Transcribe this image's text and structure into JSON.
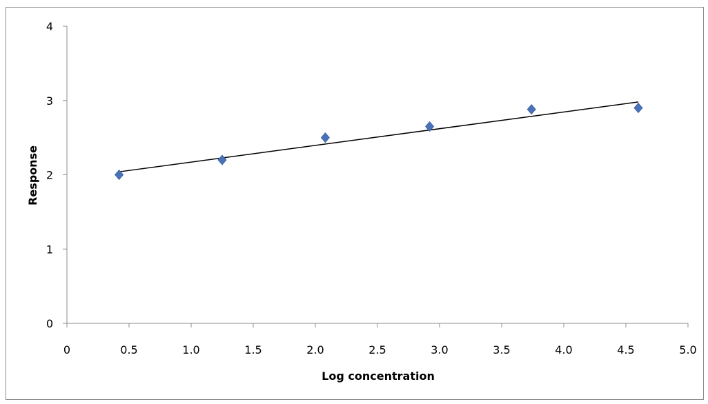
{
  "chart_data": {
    "type": "scatter",
    "title": "",
    "xlabel": "Log concentration",
    "ylabel": "Response",
    "xlim": [
      0,
      5
    ],
    "ylim": [
      0,
      4
    ],
    "x_ticks": [
      {
        "value": 0,
        "label": "0"
      },
      {
        "value": 0.5,
        "label": "0.5"
      },
      {
        "value": 1.0,
        "label": "1.0"
      },
      {
        "value": 1.5,
        "label": "1.5"
      },
      {
        "value": 2.0,
        "label": "2.0"
      },
      {
        "value": 2.5,
        "label": "2.5"
      },
      {
        "value": 3.0,
        "label": "3.0"
      },
      {
        "value": 3.5,
        "label": "3.5"
      },
      {
        "value": 4.0,
        "label": "4.0"
      },
      {
        "value": 4.5,
        "label": "4.5"
      },
      {
        "value": 5.0,
        "label": "5.0"
      }
    ],
    "y_ticks": [
      {
        "value": 0,
        "label": "0"
      },
      {
        "value": 1,
        "label": "1"
      },
      {
        "value": 2,
        "label": "2"
      },
      {
        "value": 3,
        "label": "3"
      },
      {
        "value": 4,
        "label": "4"
      }
    ],
    "grid": false,
    "legend": "none",
    "series": [
      {
        "marker": "diamond",
        "color": "#4a72b8",
        "x": [
          0.42,
          1.25,
          2.08,
          2.92,
          3.74,
          4.6
        ],
        "y": [
          2.0,
          2.2,
          2.5,
          2.65,
          2.88,
          2.9
        ]
      }
    ],
    "trendline": {
      "type": "linear",
      "color": "#000000",
      "x": [
        0.42,
        4.6
      ],
      "y": [
        2.04,
        2.98
      ]
    }
  }
}
